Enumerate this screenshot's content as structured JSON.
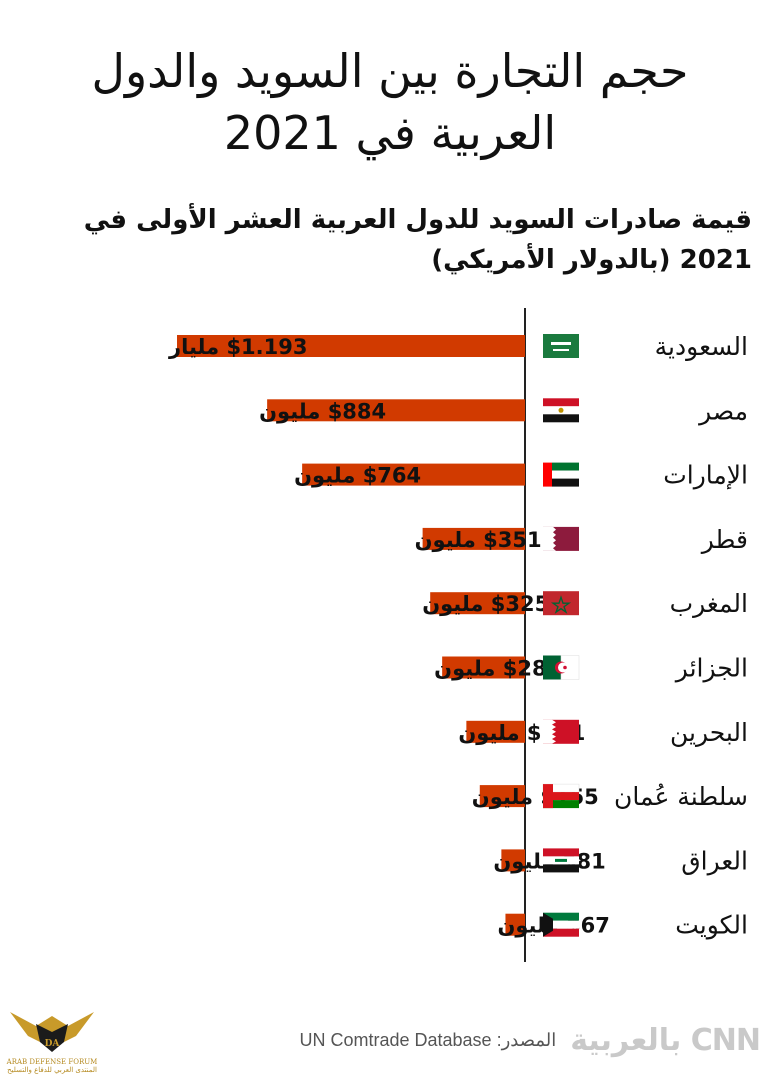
{
  "title_line1": "حجم التجارة بين السويد والدول",
  "title_line2": "العربية في 2021",
  "subtitle_line1": "قيمة صادرات السويد للدول العربية العشر الأولى في",
  "subtitle_line2": "2021 (بالدولار الأمريكي)",
  "chart_data": {
    "type": "bar",
    "orientation": "horizontal",
    "unit": "USD",
    "categories": [
      "السعودية",
      "مصر",
      "الإمارات",
      "قطر",
      "المغرب",
      "الجزائر",
      "البحرين",
      "سلطنة عُمان",
      "العراق",
      "الكويت"
    ],
    "values_millions": [
      1193,
      884,
      764,
      351,
      325,
      284,
      201,
      155,
      81,
      67
    ],
    "value_labels": [
      "$1.193 مليار",
      "$884 مليون",
      "$764 مليون",
      "$351 مليون",
      "$325 مليون",
      "$284 مليون",
      "$201 مليون",
      "$155 مليون",
      "$81 مليون",
      "$67 مليون"
    ],
    "flag_icons": [
      "saudi-flag-icon",
      "egypt-flag-icon",
      "uae-flag-icon",
      "qatar-flag-icon",
      "morocco-flag-icon",
      "algeria-flag-icon",
      "bahrain-flag-icon",
      "oman-flag-icon",
      "iraq-flag-icon",
      "kuwait-flag-icon"
    ],
    "bar_color": "#d13a00",
    "grid": false,
    "legend": "none"
  },
  "footer": {
    "brand": "CNN",
    "brand_arabic": "بالعربية",
    "source_label": "المصدر:",
    "source_name": "UN Comtrade Database"
  },
  "watermark": {
    "mark": "DA",
    "line1": "ARAB DEFENSE FORUM",
    "line2": "المنتدى العربي للدفاع والتسليح"
  },
  "colors": {
    "bar": "#d13a00",
    "text": "#111111",
    "source_text": "#555555",
    "logo": "#c9c9c9"
  }
}
